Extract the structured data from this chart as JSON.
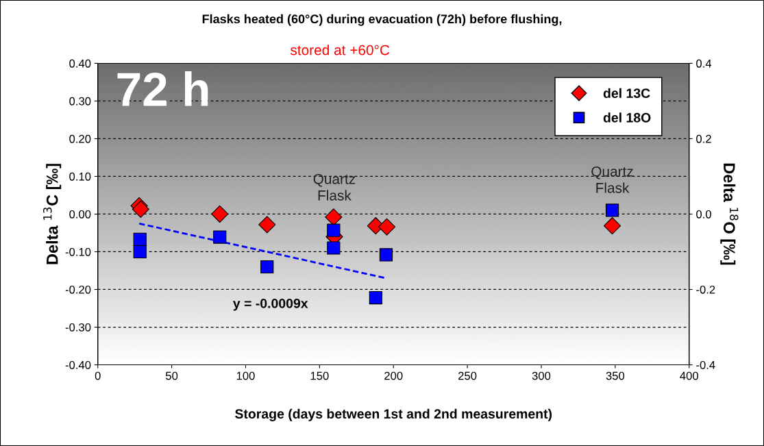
{
  "chart_data": {
    "type": "scatter",
    "title": "Flasks heated (60°C) during evacuation (72h) before flushing,",
    "subtitle": "stored at +60°C",
    "xlabel": "Storage (days between 1st and 2nd measurement)",
    "ylabel": "Delta $^{13}$C [‰]",
    "y2label": "Delta $^{18}$O [‰]",
    "series": [
      {
        "name": "del 13C",
        "color": "#ff0000",
        "marker": "diamond",
        "x": [
          28,
          29,
          82.5,
          114.5,
          159.5,
          160,
          188,
          195.5,
          348
        ],
        "values": [
          0.022,
          0.013,
          0.0,
          -0.028,
          -0.008,
          -0.06,
          -0.031,
          -0.034,
          -0.031
        ]
      },
      {
        "name": "del 18O",
        "color": "#0000ff",
        "marker": "square",
        "axis": "y2",
        "x": [
          28.5,
          28.5,
          82.5,
          114.5,
          159.5,
          159.5,
          188,
          195,
          348
        ],
        "values": [
          -0.067,
          -0.1,
          -0.061,
          -0.14,
          -0.043,
          -0.09,
          -0.222,
          -0.108,
          0.01
        ]
      },
      {
        "type": "line",
        "color": "#0000ff",
        "line_style": "dashed",
        "marker": "none",
        "axis": "y2",
        "x": [
          28,
          195
        ],
        "values": [
          -0.025,
          -0.17
        ]
      }
    ],
    "xlim": [
      0,
      400
    ],
    "xticks": [
      0,
      50,
      100,
      150,
      200,
      250,
      300,
      350,
      400
    ],
    "ylim": [
      -0.4,
      0.4
    ],
    "yticks": [
      {
        "value": -0.4,
        "label": "-0.40"
      },
      {
        "value": -0.3,
        "label": "-0.30"
      },
      {
        "value": -0.2,
        "label": "-0.20"
      },
      {
        "value": -0.1,
        "label": "-0.10"
      },
      {
        "value": 0,
        "label": "0.00"
      },
      {
        "value": 0.1,
        "label": "0.10"
      },
      {
        "value": 0.2,
        "label": "0.20"
      },
      {
        "value": 0.3,
        "label": "0.30"
      },
      {
        "value": 0.4,
        "label": "0.40"
      }
    ],
    "y2lim": [
      -0.4,
      0.4
    ],
    "y2ticks": [
      {
        "value": -0.4,
        "label": "-0.4"
      },
      {
        "value": -0.2,
        "label": "-0.2"
      },
      {
        "value": 0,
        "label": "0.0"
      },
      0.2,
      0.4
    ],
    "grid": "y",
    "legend": "top right",
    "annotations": [
      "72 h",
      "Quartz\nFlask",
      "Quartz\nFlask",
      "y = -0.0009x"
    ]
  }
}
